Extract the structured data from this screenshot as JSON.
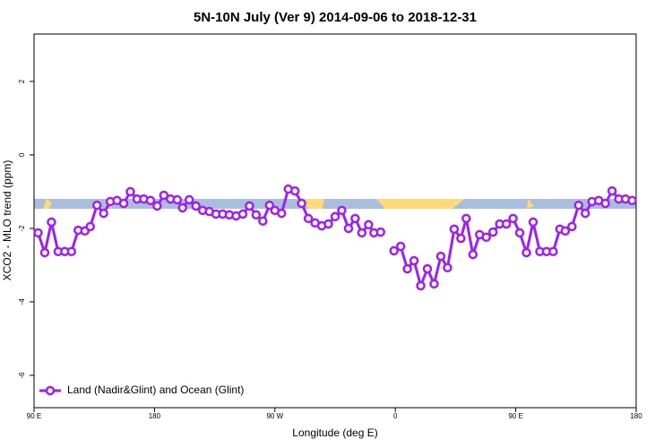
{
  "chart_data": {
    "type": "line",
    "title": "5N-10N July (Ver 9)   2014-09-06 to 2018-12-31",
    "xlabel": "Longitude (deg E)",
    "ylabel": "XCO2 - MLO trend (ppm)",
    "x": [
      93,
      98,
      103,
      108,
      113,
      118,
      123,
      128,
      132,
      137,
      142,
      147,
      152,
      157,
      162,
      167,
      172,
      177,
      182,
      187,
      192,
      197,
      201,
      206,
      211,
      216,
      221,
      226,
      231,
      236,
      241,
      246,
      251,
      256,
      261,
      266,
      270,
      275,
      280,
      285,
      290,
      295,
      300,
      305,
      310,
      315,
      320,
      325,
      330,
      335,
      340,
      344,
      349,
      354,
      359,
      364,
      369,
      374,
      379,
      384,
      389,
      394,
      399,
      404,
      409,
      413,
      418,
      423,
      428,
      433,
      438,
      443,
      448,
      453,
      458,
      463,
      468,
      473,
      478,
      483,
      487,
      492,
      497,
      502,
      507,
      512,
      517,
      522,
      527,
      532,
      537
    ],
    "series": [
      {
        "name": "Land (Nadir&Glint) and Ocean (Glint)",
        "color": "#a020f0",
        "values": [
          -2.12,
          -2.66,
          -1.83,
          -2.63,
          -2.63,
          -2.63,
          -2.05,
          -2.07,
          -1.95,
          -1.37,
          -1.59,
          -1.27,
          -1.24,
          -1.32,
          -1.0,
          -1.2,
          -1.2,
          -1.24,
          -1.39,
          -1.1,
          -1.2,
          -1.22,
          -1.44,
          -1.22,
          -1.39,
          -1.51,
          -1.54,
          -1.61,
          -1.61,
          -1.63,
          -1.66,
          -1.61,
          -1.39,
          -1.63,
          -1.8,
          -1.37,
          -1.51,
          -1.59,
          -0.93,
          -0.98,
          -1.32,
          -1.73,
          -1.85,
          -1.93,
          -1.88,
          -1.68,
          -1.51,
          -2.0,
          -1.73,
          -2.12,
          -1.9,
          -2.12,
          -2.1,
          null,
          -2.61,
          -2.49,
          -3.1,
          -2.88,
          -3.56,
          -3.1,
          -3.51,
          -2.76,
          -3.07,
          -2.02,
          -2.27,
          -1.73,
          -2.71,
          -2.17,
          -2.24,
          -2.1,
          -1.88,
          -1.88,
          -1.73,
          -2.12,
          -2.66,
          -1.83,
          -2.63,
          -2.63,
          -2.63,
          -2.02,
          -2.07,
          -1.95,
          -1.37,
          -1.59,
          -1.27,
          -1.24,
          -1.32,
          -0.98,
          -1.2,
          -1.2,
          -1.24
        ]
      }
    ],
    "xlim": [
      90,
      540
    ],
    "xticks": [
      {
        "value": 90,
        "label": "90 E"
      },
      {
        "value": 180,
        "label": "180"
      },
      {
        "value": 270,
        "label": "90 W"
      },
      {
        "value": 360,
        "label": "0"
      },
      {
        "value": 450,
        "label": "90 E"
      },
      {
        "value": 540,
        "label": "180"
      }
    ],
    "ylim": [
      -6.88,
      3.29
    ],
    "yticks": [
      -6,
      -4,
      -2,
      0,
      2
    ],
    "legend": "bottom-left"
  }
}
